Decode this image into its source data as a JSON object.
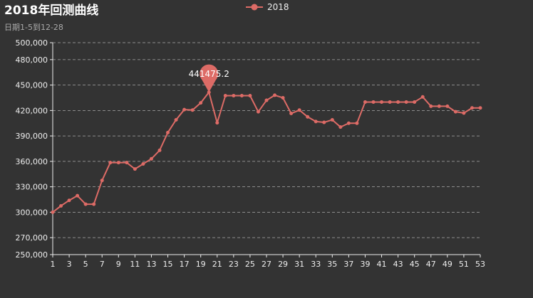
{
  "chart_data": {
    "type": "line",
    "title": "2018年回测曲线",
    "subtitle": "日期1-5到12-28",
    "legend": [
      "2018"
    ],
    "legend_position": "top-center",
    "grid": "horizontal-dashed",
    "x": [
      1,
      2,
      3,
      4,
      5,
      6,
      7,
      8,
      9,
      10,
      11,
      12,
      13,
      14,
      15,
      16,
      17,
      18,
      19,
      20,
      21,
      22,
      23,
      24,
      25,
      26,
      27,
      28,
      29,
      30,
      31,
      32,
      33,
      34,
      35,
      36,
      37,
      38,
      39,
      40,
      41,
      42,
      43,
      44,
      45,
      46,
      47,
      48,
      49,
      50,
      51,
      52,
      53
    ],
    "x_tick_labels": [
      "1",
      "3",
      "5",
      "7",
      "9",
      "11",
      "13",
      "15",
      "17",
      "19",
      "21",
      "23",
      "25",
      "27",
      "29",
      "31",
      "33",
      "35",
      "37",
      "39",
      "41",
      "43",
      "45",
      "47",
      "49",
      "51",
      "53"
    ],
    "ylim": [
      250000,
      500000
    ],
    "y_ticks": [
      250000,
      270000,
      300000,
      330000,
      360000,
      390000,
      420000,
      450000,
      480000,
      500000
    ],
    "y_tick_labels": [
      "250,000",
      "270,000",
      "300,000",
      "330,000",
      "360,000",
      "390,000",
      "420,000",
      "450,000",
      "480,000",
      "500,000"
    ],
    "series": [
      {
        "name": "2018",
        "color": "#dd6b66",
        "values": [
          300000,
          307500,
          314000,
          319500,
          309500,
          309500,
          337500,
          358500,
          358500,
          358500,
          351000,
          357000,
          363000,
          373000,
          394000,
          409000,
          421000,
          420500,
          429000,
          441475.2,
          405500,
          437500,
          437500,
          437500,
          437500,
          418500,
          432000,
          438000,
          435000,
          416500,
          420500,
          412500,
          407000,
          406000,
          409000,
          400500,
          405000,
          405000,
          430000,
          430000,
          430000,
          430000,
          430000,
          430000,
          430000,
          436000,
          425000,
          425000,
          425000,
          418500,
          417000,
          423000,
          423000
        ]
      }
    ],
    "mark_point": {
      "type": "max",
      "x": 20,
      "label": "441475.2"
    }
  }
}
